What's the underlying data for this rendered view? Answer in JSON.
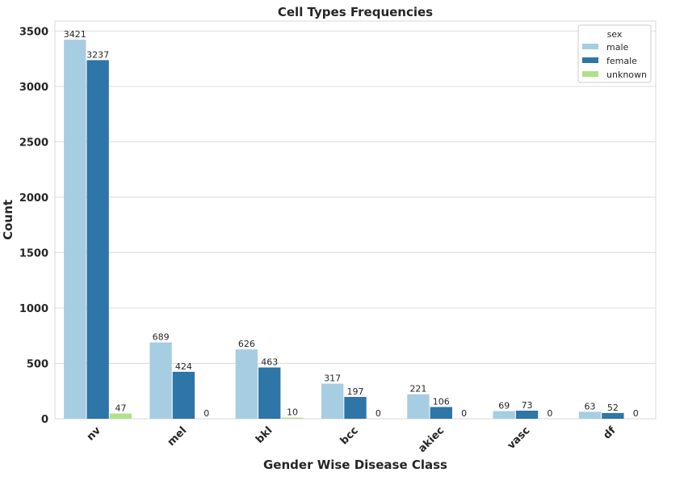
{
  "chart_data": {
    "type": "bar",
    "title": "Cell Types Frequencies",
    "xlabel": "Gender Wise Disease Class",
    "ylabel": "Count",
    "categories": [
      "nv",
      "mel",
      "bkl",
      "bcc",
      "akiec",
      "vasc",
      "df"
    ],
    "series": [
      {
        "name": "male",
        "color": "#a6cde2",
        "values": [
          3421,
          689,
          626,
          317,
          221,
          69,
          63
        ]
      },
      {
        "name": "female",
        "color": "#2e75a8",
        "values": [
          3237,
          424,
          463,
          197,
          106,
          73,
          52
        ]
      },
      {
        "name": "unknown",
        "color": "#b1df8a",
        "values": [
          47,
          0,
          10,
          0,
          0,
          0,
          0
        ]
      }
    ],
    "yticks": [
      0,
      500,
      1000,
      1500,
      2000,
      2500,
      3000,
      3500
    ],
    "ylim": [
      0,
      3590
    ],
    "grid": "horizontal",
    "legend": {
      "title": "sex",
      "placement": "top-right"
    }
  }
}
